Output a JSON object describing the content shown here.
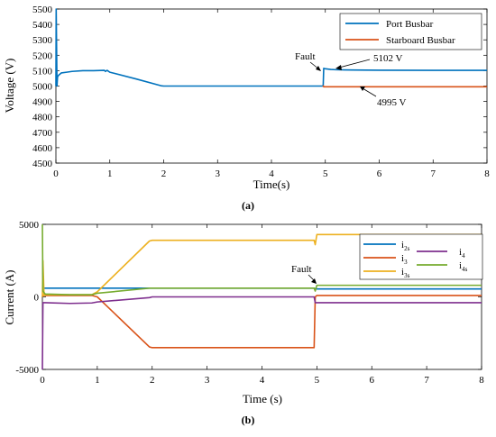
{
  "chart_data": [
    {
      "type": "line",
      "panel_label": "(a)",
      "xlabel": "Time(s)",
      "ylabel": "Voltage (V)",
      "xlim": [
        0,
        8
      ],
      "ylim": [
        4500,
        5500
      ],
      "xticks": [
        0,
        1,
        2,
        3,
        4,
        5,
        6,
        7,
        8
      ],
      "yticks": [
        4500,
        4600,
        4700,
        4800,
        4900,
        5000,
        5100,
        5200,
        5300,
        5400,
        5500
      ],
      "legend_position": "top-right",
      "series": [
        {
          "name": "Port Busbar",
          "color": "#0072BD",
          "x": [
            0,
            0.005,
            0.02,
            0.03,
            0.05,
            0.1,
            0.2,
            0.3,
            0.5,
            0.7,
            0.9,
            0.92,
            0.95,
            1.0,
            1.5,
            1.95,
            2.0,
            3.0,
            4.0,
            4.95,
            4.96,
            4.97,
            5.0,
            5.05,
            5.1,
            5.2,
            5.5,
            6.0,
            7.0,
            8.0
          ],
          "y": [
            5000,
            5500,
            5000,
            5060,
            5070,
            5085,
            5090,
            5095,
            5100,
            5100,
            5102,
            5095,
            5102,
            5090,
            5045,
            5002,
            5000,
            5000,
            5000,
            5000,
            5000,
            5115,
            5112,
            5110,
            5108,
            5106,
            5104,
            5103,
            5102,
            5102
          ]
        },
        {
          "name": "Starboard Busbar",
          "color": "#D95319",
          "x": [
            4.95,
            4.965,
            4.97,
            8.0
          ],
          "y": [
            5000,
            5000,
            4995,
            4995
          ]
        }
      ],
      "annotations": [
        {
          "text": "Fault",
          "x": 4.45,
          "y": 5170
        },
        {
          "text": "5102 V",
          "x": 5.85,
          "y": 5130
        },
        {
          "text": "4995 V",
          "x": 5.95,
          "y": 4930
        }
      ]
    },
    {
      "type": "line",
      "panel_label": "(b)",
      "xlabel": "Time (s)",
      "ylabel": "Current (A)",
      "xlim": [
        0,
        8
      ],
      "ylim": [
        -5000,
        5000
      ],
      "xticks": [
        0,
        1,
        2,
        3,
        4,
        5,
        6,
        7,
        8
      ],
      "yticks": [
        -5000,
        0,
        5000
      ],
      "legend_position": "top-right",
      "series": [
        {
          "name": "i2s",
          "label_base": "i",
          "label_sub": "2s",
          "color": "#0072BD",
          "x": [
            0,
            0.02,
            0.05,
            1.0,
            2.0,
            4.95,
            5.0,
            8.0
          ],
          "y": [
            600,
            600,
            600,
            600,
            600,
            600,
            550,
            550
          ]
        },
        {
          "name": "i3",
          "label_base": "i",
          "label_sub": "3",
          "color": "#D95319",
          "x": [
            0,
            0.01,
            0.05,
            0.9,
            1.0,
            1.95,
            2.0,
            4.95,
            4.97,
            5.0,
            8.0
          ],
          "y": [
            0,
            100,
            100,
            100,
            0,
            -3450,
            -3500,
            -3500,
            0,
            100,
            100
          ]
        },
        {
          "name": "i3s",
          "label_base": "i",
          "label_sub": "3s",
          "color": "#EDB120",
          "x": [
            0,
            0.01,
            0.03,
            0.05,
            0.9,
            1.0,
            1.95,
            2.0,
            4.95,
            4.97,
            5.0,
            8.0
          ],
          "y": [
            0,
            2500,
            100,
            150,
            150,
            350,
            3850,
            3900,
            3900,
            3600,
            4300,
            4300
          ]
        },
        {
          "name": "i4",
          "label_base": "i",
          "label_sub": "4",
          "color": "#7E2F8E",
          "x": [
            0,
            0.01,
            0.05,
            0.5,
            0.9,
            1.0,
            1.95,
            2.0,
            4.95,
            4.97,
            5.0,
            8.0
          ],
          "y": [
            -5000,
            -400,
            -400,
            -450,
            -420,
            -350,
            -50,
            0,
            0,
            -400,
            -400,
            -400
          ]
        },
        {
          "name": "i4s",
          "label_base": "i",
          "label_sub": "4s",
          "color": "#77AC30",
          "x": [
            0,
            0.01,
            0.05,
            0.5,
            0.9,
            1.0,
            1.95,
            2.0,
            4.95,
            4.97,
            5.0,
            8.0
          ],
          "y": [
            5000,
            400,
            200,
            150,
            150,
            250,
            600,
            600,
            600,
            400,
            800,
            800
          ]
        }
      ],
      "annotations": [
        {
          "text": "Fault",
          "x": 4.5,
          "y": 1550
        }
      ]
    }
  ]
}
